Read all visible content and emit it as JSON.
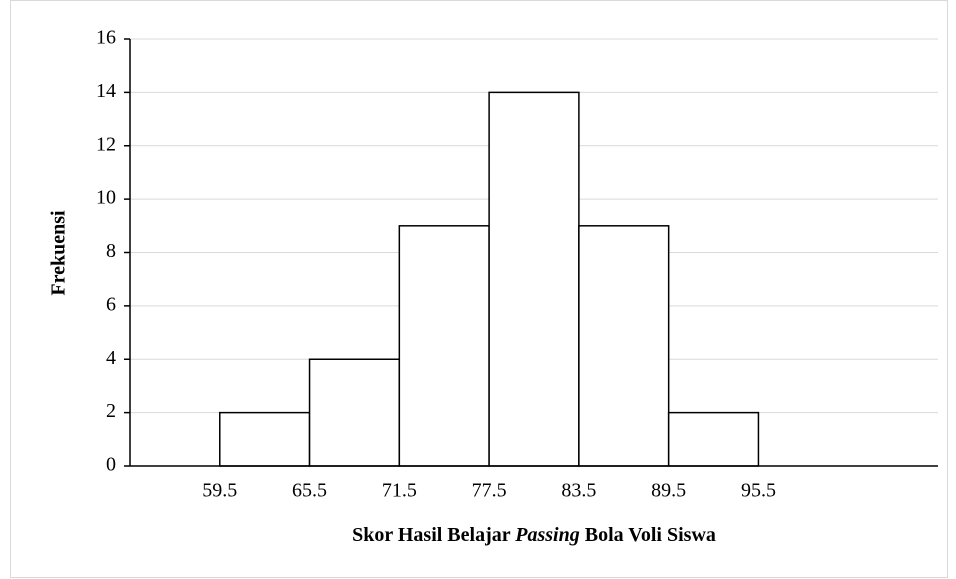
{
  "chart_data": {
    "type": "histogram",
    "x_label": [
      "Skor Hasil Belajar",
      "Passing",
      "Bola Voli Siswa"
    ],
    "y_label": "Frekuensi",
    "bins": [
      59.5,
      65.5,
      71.5,
      77.5,
      83.5,
      89.5,
      95.5
    ],
    "values": [
      2,
      4,
      9,
      14,
      9,
      2
    ],
    "color": "#ffffff",
    "xlim": [
      53.5,
      107.5
    ],
    "xticks": [
      59.5,
      65.5,
      71.5,
      77.5,
      83.5,
      89.5,
      95.5
    ],
    "ylim": [
      0,
      16
    ],
    "yticks": [
      0,
      2,
      4,
      6,
      8,
      10,
      12,
      14,
      16
    ],
    "grid": true
  }
}
